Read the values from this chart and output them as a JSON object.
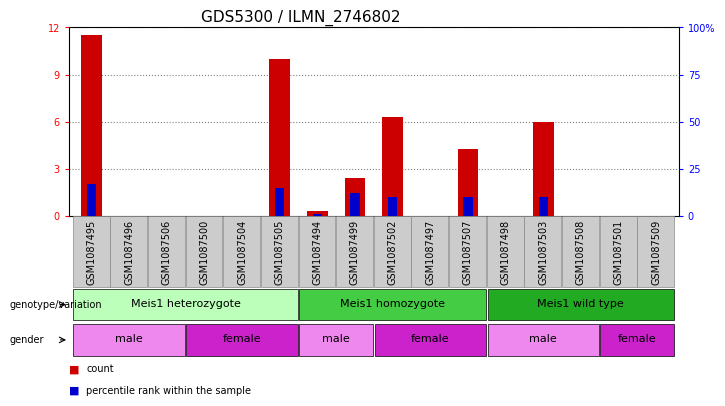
{
  "title": "GDS5300 / ILMN_2746802",
  "samples": [
    "GSM1087495",
    "GSM1087496",
    "GSM1087506",
    "GSM1087500",
    "GSM1087504",
    "GSM1087505",
    "GSM1087494",
    "GSM1087499",
    "GSM1087502",
    "GSM1087497",
    "GSM1087507",
    "GSM1087498",
    "GSM1087503",
    "GSM1087508",
    "GSM1087501",
    "GSM1087509"
  ],
  "count_values": [
    11.5,
    0,
    0,
    0,
    0,
    10.0,
    0.3,
    2.4,
    6.3,
    0,
    4.3,
    0,
    6.0,
    0,
    0,
    0
  ],
  "percentile_values": [
    17,
    0,
    0,
    0,
    0,
    15,
    1,
    12,
    10,
    0,
    10,
    0,
    10,
    0,
    0,
    0
  ],
  "ylim_left": [
    0,
    12
  ],
  "ylim_right": [
    0,
    100
  ],
  "yticks_left": [
    0,
    3,
    6,
    9,
    12
  ],
  "yticks_right": [
    0,
    25,
    50,
    75,
    100
  ],
  "ytick_labels_left": [
    "0",
    "3",
    "6",
    "9",
    "12"
  ],
  "ytick_labels_right": [
    "0",
    "25",
    "50",
    "75",
    "100%"
  ],
  "bar_color": "#cc0000",
  "percentile_color": "#0000cc",
  "genotype_groups": [
    {
      "label": "Meis1 heterozygote",
      "start": 0,
      "end": 5,
      "color": "#bbffbb"
    },
    {
      "label": "Meis1 homozygote",
      "start": 6,
      "end": 10,
      "color": "#44cc44"
    },
    {
      "label": "Meis1 wild type",
      "start": 11,
      "end": 15,
      "color": "#22aa22"
    }
  ],
  "gender_groups": [
    {
      "label": "male",
      "start": 0,
      "end": 2,
      "color": "#ee88ee"
    },
    {
      "label": "female",
      "start": 3,
      "end": 5,
      "color": "#cc22cc"
    },
    {
      "label": "male",
      "start": 6,
      "end": 7,
      "color": "#ee88ee"
    },
    {
      "label": "female",
      "start": 8,
      "end": 10,
      "color": "#cc22cc"
    },
    {
      "label": "male",
      "start": 11,
      "end": 13,
      "color": "#ee88ee"
    },
    {
      "label": "female",
      "start": 14,
      "end": 15,
      "color": "#cc22cc"
    }
  ],
  "genotype_label": "genotype/variation",
  "gender_label": "gender",
  "legend_count_label": "count",
  "legend_percentile_label": "percentile rank within the sample",
  "bar_width": 0.55,
  "tick_fontsize": 7,
  "label_fontsize": 8,
  "title_fontsize": 11,
  "sample_bg_color": "#cccccc",
  "sample_bg_edge": "#888888"
}
